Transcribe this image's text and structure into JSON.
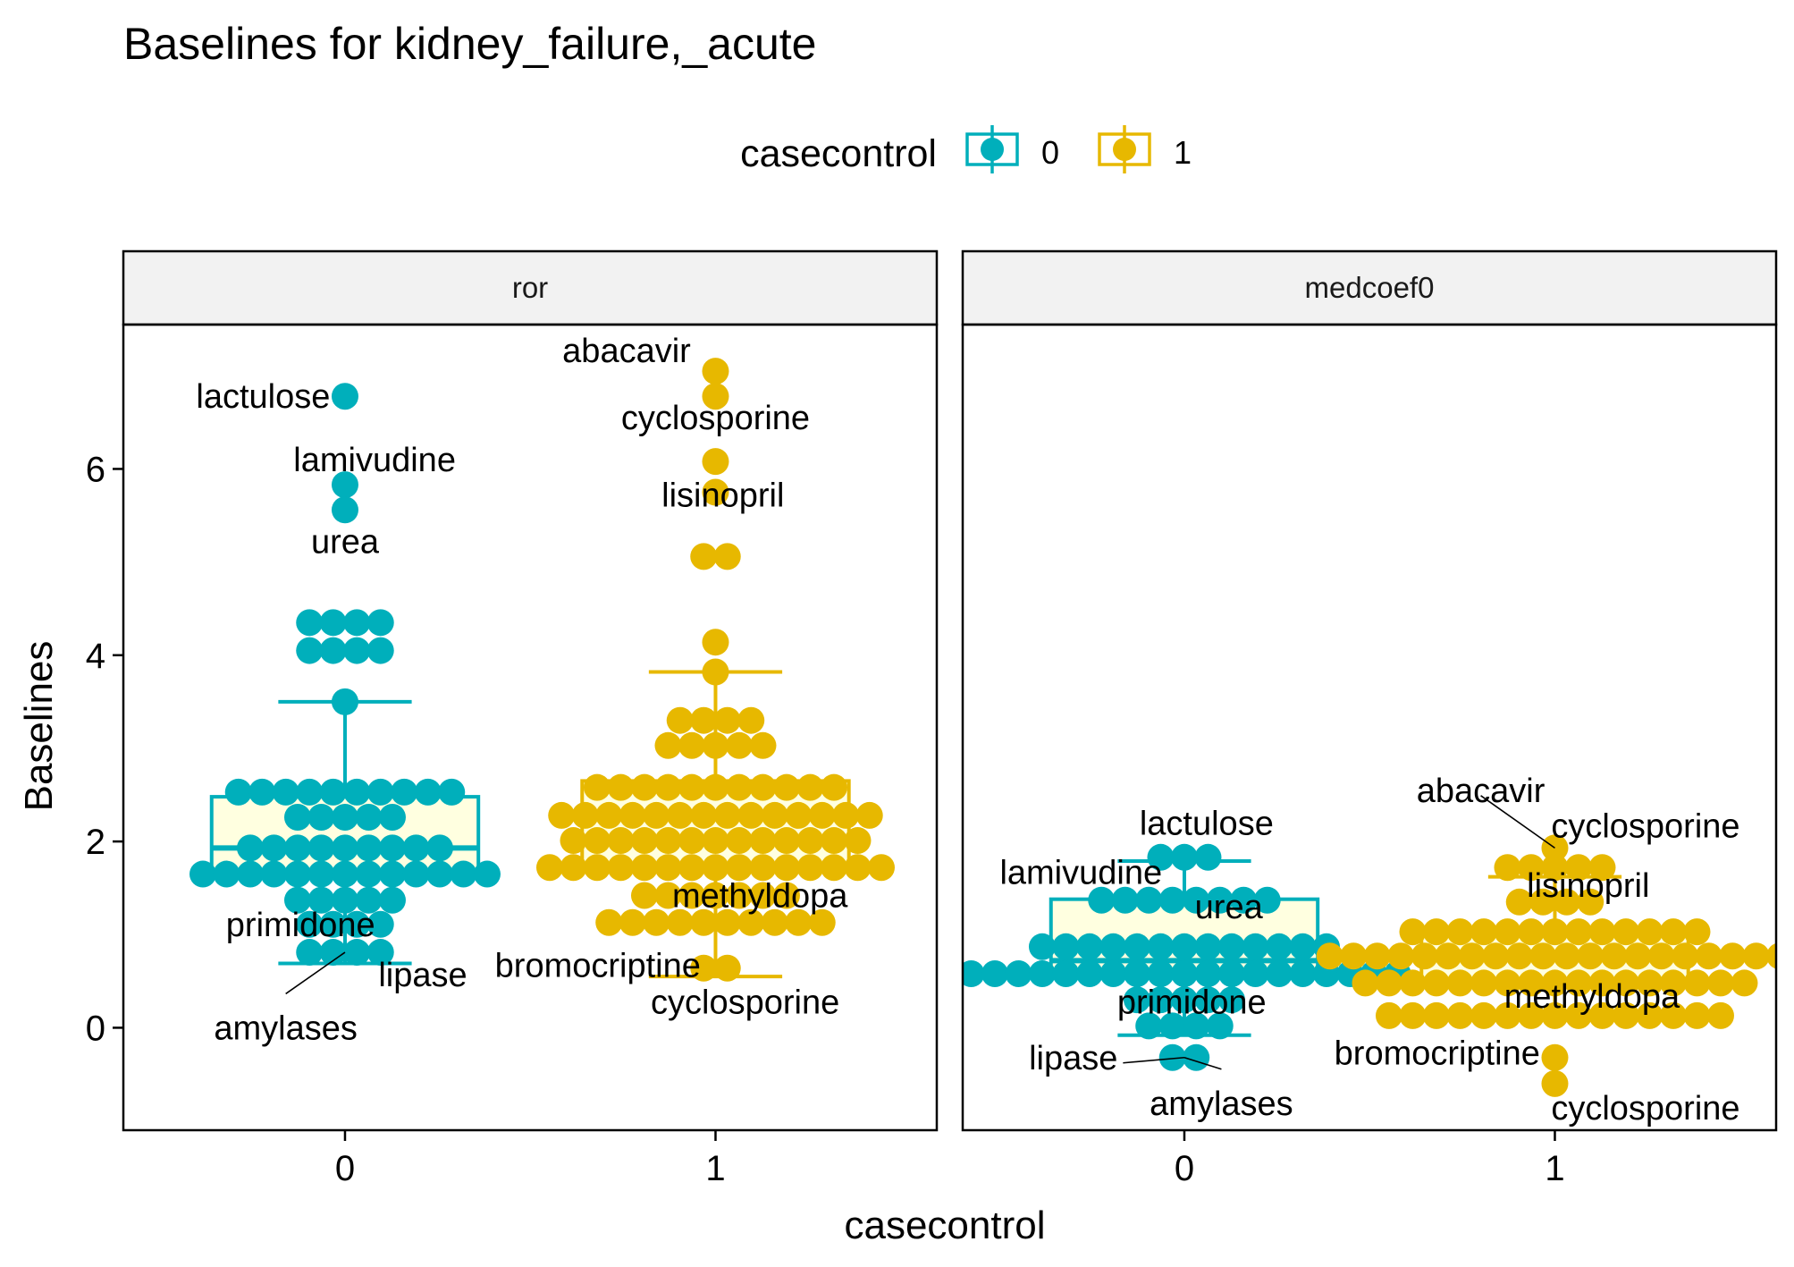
{
  "chart_data": {
    "type": "scatter",
    "subtype": "dotplot-with-boxplot",
    "title": "Baselines for kidney_failure,_acute",
    "xlabel": "casecontrol",
    "ylabel": "Baselines",
    "categories": [
      "0",
      "1"
    ],
    "ylim": [
      -1.1,
      7.55
    ],
    "yticks": [
      0,
      2,
      4,
      6
    ],
    "grid": false,
    "legend": {
      "title": "casecontrol",
      "position": "top",
      "entries": [
        {
          "label": "0",
          "color": "#00AFBB"
        },
        {
          "label": "1",
          "color": "#E7B800"
        }
      ]
    },
    "colors": {
      "0": "#00AFBB",
      "1": "#E7B800",
      "box_fill": "#FFFFE0"
    },
    "facets": [
      {
        "name": "ror",
        "boxes": [
          {
            "category": "0",
            "q1": 1.65,
            "median": 1.93,
            "q3": 2.48,
            "whisker_low": 0.69,
            "whisker_high": 3.5
          },
          {
            "category": "1",
            "q1": 1.72,
            "median": 2.25,
            "q3": 2.65,
            "whisker_low": 0.55,
            "whisker_high": 3.82
          }
        ],
        "dots": [
          {
            "category": "0",
            "rows": [
              {
                "y": 6.78,
                "n": 1
              },
              {
                "y": 5.83,
                "n": 1
              },
              {
                "y": 5.56,
                "n": 1
              },
              {
                "y": 4.35,
                "n": 4
              },
              {
                "y": 4.05,
                "n": 4
              },
              {
                "y": 3.5,
                "n": 1
              },
              {
                "y": 2.53,
                "n": 10
              },
              {
                "y": 2.26,
                "n": 5
              },
              {
                "y": 1.93,
                "n": 9
              },
              {
                "y": 1.65,
                "n": 13
              },
              {
                "y": 1.37,
                "n": 5
              },
              {
                "y": 1.11,
                "n": 4
              },
              {
                "y": 0.81,
                "n": 4
              }
            ]
          },
          {
            "category": "1",
            "rows": [
              {
                "y": 7.05,
                "n": 1
              },
              {
                "y": 6.78,
                "n": 1
              },
              {
                "y": 6.08,
                "n": 1
              },
              {
                "y": 5.75,
                "n": 1
              },
              {
                "y": 5.06,
                "n": 2
              },
              {
                "y": 4.14,
                "n": 1
              },
              {
                "y": 3.82,
                "n": 1
              },
              {
                "y": 3.3,
                "n": 4
              },
              {
                "y": 3.03,
                "n": 5
              },
              {
                "y": 2.58,
                "n": 11
              },
              {
                "y": 2.28,
                "n": 14
              },
              {
                "y": 2.01,
                "n": 13
              },
              {
                "y": 1.72,
                "n": 15
              },
              {
                "y": 1.42,
                "n": 7
              },
              {
                "y": 1.13,
                "n": 10
              },
              {
                "y": 0.64,
                "n": 2
              }
            ]
          }
        ],
        "annotations": [
          {
            "text": "lactulose",
            "x": "0",
            "y": 6.78,
            "anchor": "end",
            "dx": -0.04,
            "dy": 0
          },
          {
            "text": "lamivudine",
            "x": "0",
            "y": 5.83,
            "anchor": "middle",
            "dx": 0.08,
            "dy": 0.27
          },
          {
            "text": "urea",
            "x": "0",
            "y": 5.56,
            "anchor": "middle",
            "dx": 0,
            "dy": -0.34
          },
          {
            "text": "primidone",
            "x": "0",
            "y": 1.11,
            "anchor": "middle",
            "dx": -0.12,
            "dy": 0
          },
          {
            "text": "lipase",
            "x": "0",
            "y": 0.81,
            "anchor": "middle",
            "dx": 0.21,
            "dy": -0.24
          },
          {
            "text": "amylases",
            "x": "0",
            "y": 0.81,
            "anchor": "middle",
            "dx": -0.16,
            "dy": -0.81,
            "leader": true
          },
          {
            "text": "abacavir",
            "x": "1",
            "y": 7.05,
            "anchor": "middle",
            "dx": -0.24,
            "dy": 0.22
          },
          {
            "text": "cyclosporine",
            "x": "1",
            "y": 6.78,
            "anchor": "middle",
            "dx": 0,
            "dy": -0.23
          },
          {
            "text": "lisinopril",
            "x": "1",
            "y": 6.08,
            "anchor": "middle",
            "dx": 0.02,
            "dy": -0.36
          },
          {
            "text": "methyldopa",
            "x": "1",
            "y": 1.42,
            "anchor": "middle",
            "dx": 0.12,
            "dy": 0
          },
          {
            "text": "bromocriptine",
            "x": "1",
            "y": 1.13,
            "anchor": "end",
            "dx": -0.04,
            "dy": -0.46
          },
          {
            "text": "cyclosporine",
            "x": "1",
            "y": 0.64,
            "anchor": "middle",
            "dx": 0.08,
            "dy": -0.36
          }
        ]
      },
      {
        "name": "medcoef0",
        "boxes": [
          {
            "category": "0",
            "q1": 0.53,
            "median": 0.72,
            "q3": 1.38,
            "whisker_low": -0.08,
            "whisker_high": 1.79
          },
          {
            "category": "1",
            "q1": 0.47,
            "median": 0.76,
            "q3": 1.03,
            "whisker_low": 0.12,
            "whisker_high": 1.62
          }
        ],
        "dots": [
          {
            "category": "0",
            "rows": [
              {
                "y": 1.83,
                "n": 3
              },
              {
                "y": 1.37,
                "n": 8
              },
              {
                "y": 0.87,
                "n": 13
              },
              {
                "y": 0.58,
                "n": 19
              },
              {
                "y": 0.3,
                "n": 5
              },
              {
                "y": 0.02,
                "n": 4
              },
              {
                "y": -0.32,
                "n": 2
              }
            ]
          },
          {
            "category": "1",
            "rows": [
              {
                "y": 1.93,
                "n": 1
              },
              {
                "y": 1.72,
                "n": 5
              },
              {
                "y": 1.35,
                "n": 4
              },
              {
                "y": 1.03,
                "n": 13
              },
              {
                "y": 0.77,
                "n": 20
              },
              {
                "y": 0.48,
                "n": 17
              },
              {
                "y": 0.13,
                "n": 15
              },
              {
                "y": -0.32,
                "n": 1
              },
              {
                "y": -0.6,
                "n": 1
              }
            ]
          }
        ],
        "annotations": [
          {
            "text": "lactulose",
            "x": "0",
            "y": 1.83,
            "anchor": "middle",
            "dx": 0.06,
            "dy": 0.37
          },
          {
            "text": "lamivudine",
            "x": "0",
            "y": 1.37,
            "anchor": "end",
            "dx": -0.06,
            "dy": 0.3
          },
          {
            "text": "urea",
            "x": "0",
            "y": 1.37,
            "anchor": "middle",
            "dx": 0.12,
            "dy": -0.07
          },
          {
            "text": "primidone",
            "x": "0",
            "y": 0.3,
            "anchor": "middle",
            "dx": 0.02,
            "dy": -0.02
          },
          {
            "text": "lipase",
            "x": "0",
            "y": -0.32,
            "anchor": "end",
            "dx": -0.18,
            "dy": 0,
            "leader": true
          },
          {
            "text": "amylases",
            "x": "0",
            "y": -0.32,
            "anchor": "middle",
            "dx": 0.1,
            "dy": -0.49,
            "leader": true
          },
          {
            "text": "abacavir",
            "x": "1",
            "y": 1.93,
            "anchor": "middle",
            "dx": -0.2,
            "dy": 0.62,
            "leader": true
          },
          {
            "text": "cyclosporine",
            "x": "1",
            "y": 1.93,
            "anchor": "start",
            "dx": -0.01,
            "dy": 0.24
          },
          {
            "text": "lisinopril",
            "x": "1",
            "y": 1.35,
            "anchor": "middle",
            "dx": 0.09,
            "dy": 0.18
          },
          {
            "text": "methyldopa",
            "x": "1",
            "y": 0.13,
            "anchor": "middle",
            "dx": 0.1,
            "dy": 0.21
          },
          {
            "text": "bromocriptine",
            "x": "1",
            "y": -0.32,
            "anchor": "end",
            "dx": -0.04,
            "dy": 0.05
          },
          {
            "text": "cyclosporine",
            "x": "1",
            "y": -0.6,
            "anchor": "start",
            "dx": -0.01,
            "dy": -0.26
          }
        ]
      }
    ]
  }
}
